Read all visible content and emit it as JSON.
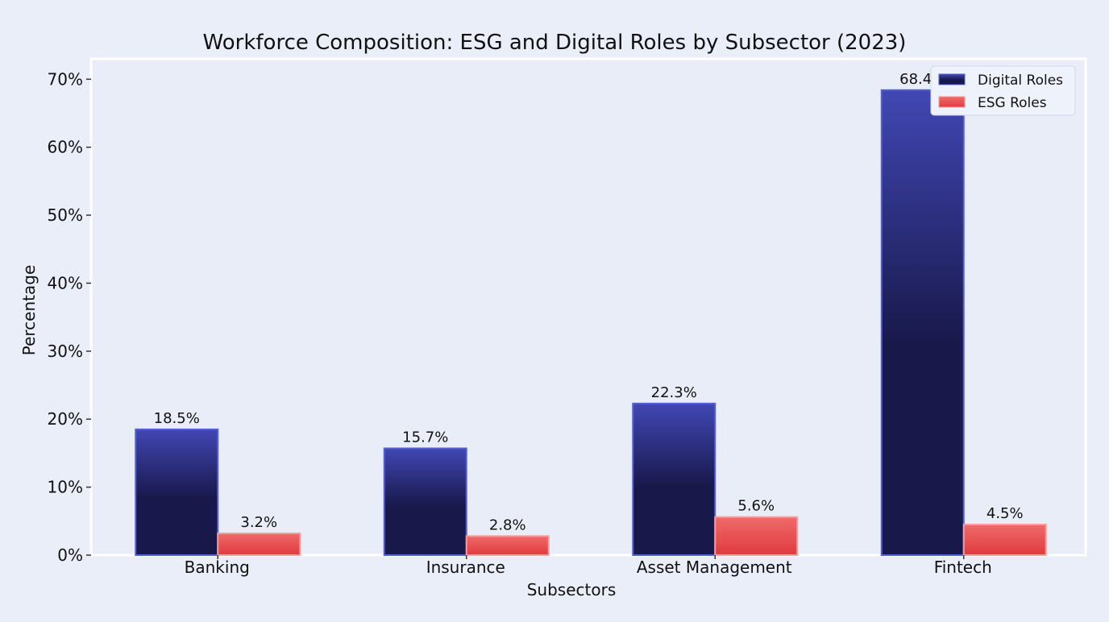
{
  "chart_data": {
    "type": "bar",
    "title": "Workforce Composition: ESG and Digital Roles by Subsector (2023)",
    "xlabel": "Subsectors",
    "ylabel": "Percentage",
    "categories": [
      "Banking",
      "Insurance",
      "Asset Management",
      "Fintech"
    ],
    "series": [
      {
        "name": "Digital Roles",
        "values": [
          18.5,
          15.7,
          22.3,
          68.4
        ],
        "labels": [
          "18.5%",
          "15.7%",
          "22.3%",
          "68.4%"
        ],
        "color_top": "#4147b3",
        "color_bottom": "#18184a",
        "edge_color": "#5560d6"
      },
      {
        "name": "ESG Roles",
        "values": [
          3.2,
          2.8,
          5.6,
          4.5
        ],
        "labels": [
          "3.2%",
          "2.8%",
          "5.6%",
          "4.5%"
        ],
        "color_top": "#f06a6a",
        "color_bottom": "#e03a3f",
        "edge_color": "#f59c9c"
      }
    ],
    "ylim": [
      0,
      73
    ],
    "yticks": [
      0,
      10,
      20,
      30,
      40,
      50,
      60,
      70
    ],
    "ytick_labels": [
      "0%",
      "10%",
      "20%",
      "30%",
      "40%",
      "50%",
      "60%",
      "70%"
    ],
    "legend_position": "top-right",
    "grid": false,
    "plot_background": "#e8edf8",
    "page_background": "#e9eef9",
    "frame_color": "#ffffff"
  }
}
